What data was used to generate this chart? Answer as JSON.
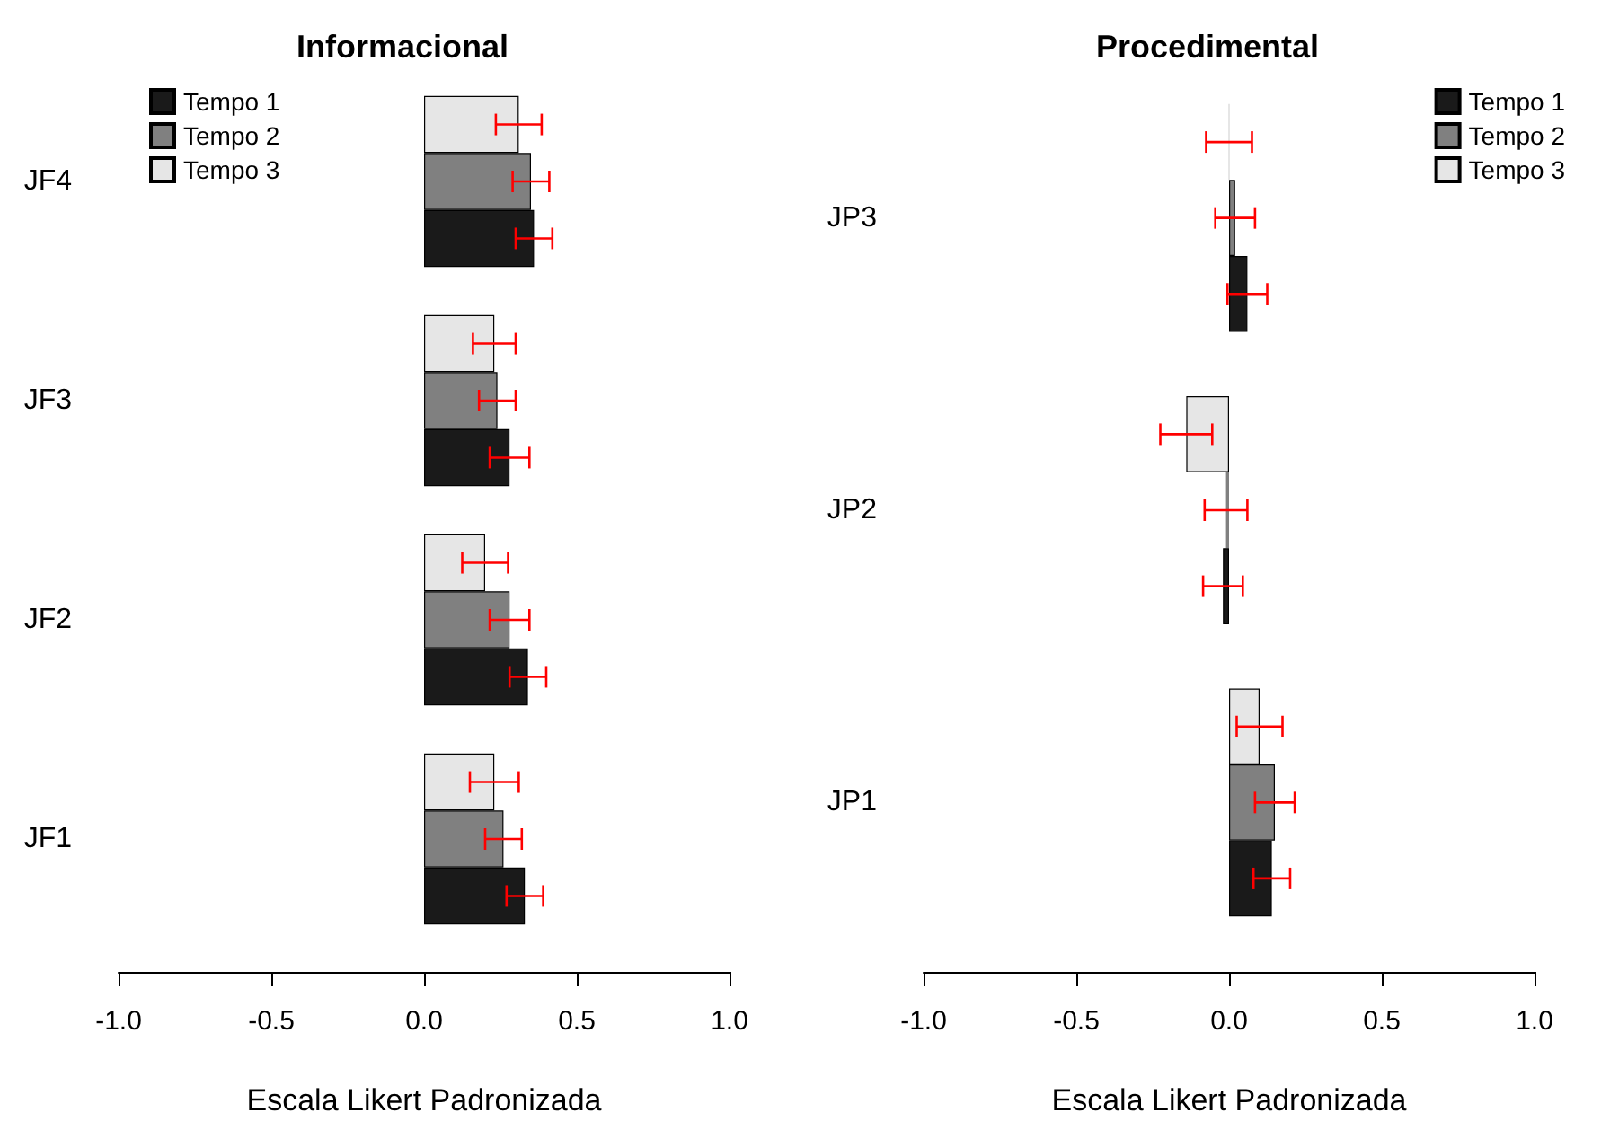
{
  "chart_data": [
    {
      "type": "bar",
      "orientation": "horizontal",
      "title": "Informacional",
      "xlabel": "Escala Likert Padronizada",
      "categories": [
        "JF4",
        "JF3",
        "JF2",
        "JF1"
      ],
      "xlim": [
        -1,
        1
      ],
      "xticks": [
        {
          "value": -1,
          "label": "-1.0"
        },
        {
          "value": -0.5,
          "label": "-0.5"
        },
        {
          "value": 0,
          "label": "0.0"
        },
        {
          "value": 0.5,
          "label": "0.5"
        },
        {
          "value": 1,
          "label": "1.0"
        }
      ],
      "grid": false,
      "legend": "top left",
      "series": [
        {
          "name": "Tempo 1",
          "color": "#1a1a1a",
          "values": [
            0.36,
            0.28,
            0.34,
            0.33
          ],
          "errors": [
            0.06,
            0.065,
            0.06,
            0.06
          ]
        },
        {
          "name": "Tempo 2",
          "color": "#808080",
          "values": [
            0.35,
            0.24,
            0.28,
            0.26
          ],
          "errors": [
            0.06,
            0.06,
            0.065,
            0.06
          ]
        },
        {
          "name": "Tempo 3",
          "color": "#e6e6e6",
          "values": [
            0.31,
            0.23,
            0.2,
            0.23
          ],
          "errors": [
            0.075,
            0.07,
            0.075,
            0.08
          ]
        }
      ]
    },
    {
      "type": "bar",
      "orientation": "horizontal",
      "title": "Procedimental",
      "xlabel": "Escala Likert Padronizada",
      "categories": [
        "JP3",
        "JP2",
        "JP1"
      ],
      "xlim": [
        -1,
        1
      ],
      "xticks": [
        {
          "value": -1,
          "label": "-1.0"
        },
        {
          "value": -0.5,
          "label": "-0.5"
        },
        {
          "value": 0,
          "label": "0.0"
        },
        {
          "value": 0.5,
          "label": "0.5"
        },
        {
          "value": 1,
          "label": "1.0"
        }
      ],
      "grid": false,
      "legend": "top right",
      "series": [
        {
          "name": "Tempo 1",
          "color": "#1a1a1a",
          "values": [
            0.06,
            -0.02,
            0.14
          ],
          "errors": [
            0.065,
            0.065,
            0.06
          ]
        },
        {
          "name": "Tempo 2",
          "color": "#808080",
          "values": [
            0.02,
            -0.01,
            0.15
          ],
          "errors": [
            0.065,
            0.07,
            0.065
          ]
        },
        {
          "name": "Tempo 3",
          "color": "#e6e6e6",
          "values": [
            0.0,
            -0.14,
            0.1
          ],
          "errors": [
            0.075,
            0.085,
            0.075
          ]
        }
      ]
    }
  ]
}
